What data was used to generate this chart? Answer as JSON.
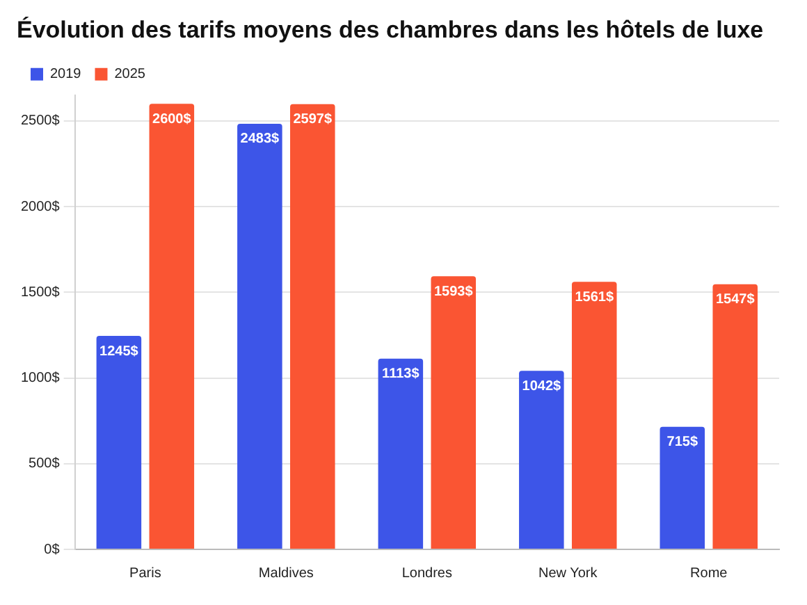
{
  "chart_data": {
    "type": "bar",
    "title": "Évolution des tarifs moyens des chambres dans les hôtels de luxe",
    "categories": [
      "Paris",
      "Maldives",
      "Londres",
      "New York",
      "Rome"
    ],
    "series": [
      {
        "name": "2019",
        "color": "#3d55e8",
        "values": [
          1245,
          2483,
          1113,
          1042,
          715
        ],
        "value_labels": [
          "1245$",
          "2483$",
          "1113$",
          "1042$",
          "715$"
        ]
      },
      {
        "name": "2025",
        "color": "#fa5533",
        "values": [
          2600,
          2597,
          1593,
          1561,
          1547
        ],
        "value_labels": [
          "2600$",
          "2597$",
          "1593$",
          "1561$",
          "1547$"
        ]
      }
    ],
    "ylim": [
      0,
      2650
    ],
    "yticks": [
      {
        "value": 0,
        "label": "0$"
      },
      {
        "value": 500,
        "label": "500$"
      },
      {
        "value": 1000,
        "label": "1000$"
      },
      {
        "value": 1500,
        "label": "1500$"
      },
      {
        "value": 2000,
        "label": "2000$"
      },
      {
        "value": 2500,
        "label": "2500$"
      }
    ],
    "grid": "y",
    "legend": "top left"
  }
}
